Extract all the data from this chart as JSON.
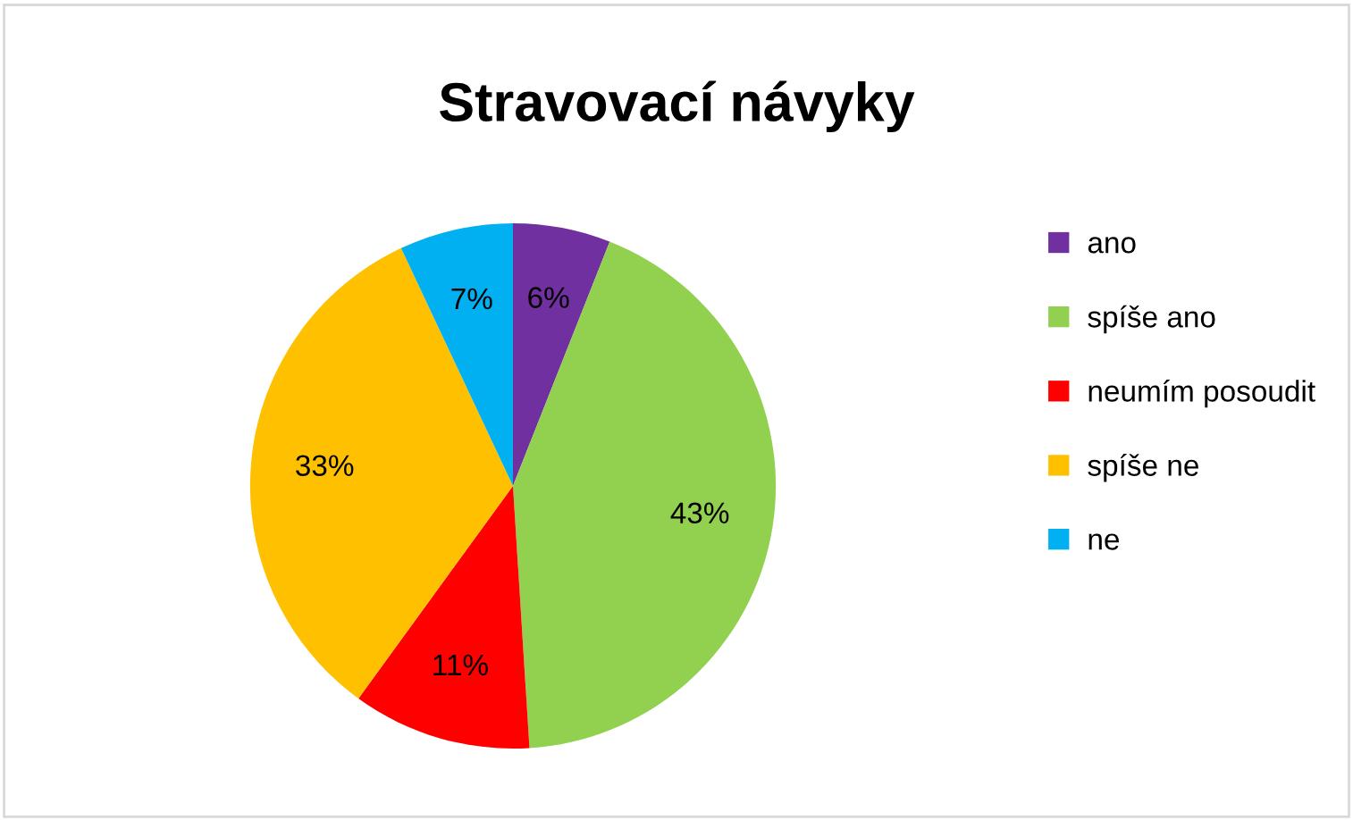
{
  "chart_data": {
    "type": "pie",
    "title": "Stravovací návyky",
    "categories": [
      "ano",
      "spíše ano",
      "neumím posoudit",
      "spíše ne",
      "ne"
    ],
    "values": [
      6,
      43,
      11,
      33,
      7
    ],
    "colors": [
      "#7030a0",
      "#92d050",
      "#ff0000",
      "#ffc000",
      "#00b0f0"
    ],
    "value_labels": [
      "6%",
      "43%",
      "11%",
      "33%",
      "7%"
    ],
    "legend": "right"
  }
}
